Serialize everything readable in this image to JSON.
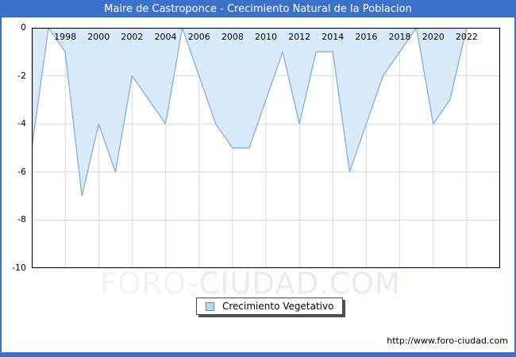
{
  "header": {
    "title": "Maire de Castroponce - Crecimiento Natural de la Poblacion"
  },
  "legend": {
    "label": "Crecimiento Vegetativo"
  },
  "watermark": {
    "part1": "FORO-",
    "part2": "CIUDAD.COM"
  },
  "footer": {
    "url": "http://www.foro-ciudad.com"
  },
  "colors": {
    "frame_blue": "#3c71cb",
    "title_text": "#ffffff",
    "area_fill": "#d9eafa",
    "area_line": "#8ab1e0",
    "grid": "#d8d8d8",
    "axis": "#000000",
    "tick_text": "#000000",
    "watermark_gray": "#f2f2f3",
    "watermark_blue": "#e8eaf6",
    "legend_swatch_fill": "#b9d7f0",
    "legend_swatch_border": "#5186c5"
  },
  "chart_data": {
    "type": "area",
    "title": "Maire de Castroponce - Crecimiento Natural de la Poblacion",
    "series_name": "Crecimiento Vegetativo",
    "x": [
      1996,
      1997,
      1998,
      1999,
      2000,
      2001,
      2002,
      2003,
      2004,
      2005,
      2006,
      2007,
      2008,
      2009,
      2010,
      2011,
      2012,
      2013,
      2014,
      2015,
      2016,
      2017,
      2018,
      2019,
      2020,
      2021,
      2022
    ],
    "values": [
      -5,
      0,
      -1,
      -7,
      -4,
      -6,
      -2,
      -3,
      -4,
      0,
      -2,
      -4,
      -5,
      -5,
      -3,
      -1,
      -4,
      -1,
      -1,
      -6,
      -4,
      -2,
      -1,
      0,
      -4,
      -3,
      0
    ],
    "x_tick_labels": [
      "1998",
      "2000",
      "2002",
      "2004",
      "2006",
      "2008",
      "2010",
      "2012",
      "2014",
      "2016",
      "2018",
      "2020",
      "2022"
    ],
    "y_ticks": [
      0,
      -2,
      -4,
      -6,
      -8,
      -10
    ],
    "xlim": [
      1996,
      2024
    ],
    "ylim": [
      -10,
      0
    ],
    "grid": true,
    "legend_position": "bottom",
    "fill_direction": "between line and zero axis (above line)"
  }
}
